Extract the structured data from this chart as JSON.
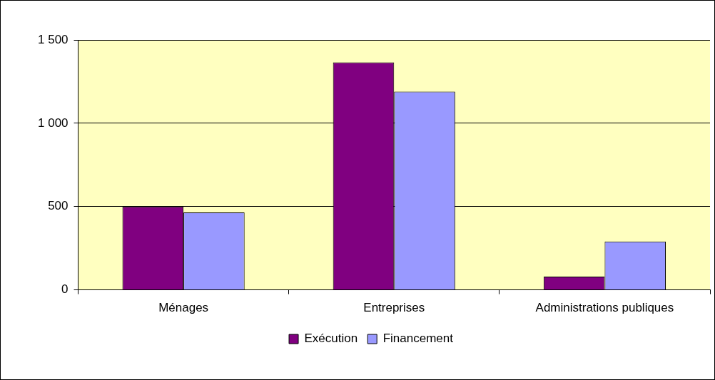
{
  "chart_data": {
    "type": "bar",
    "categories": [
      "Ménages",
      "Entreprises",
      "Administrations publiques"
    ],
    "series": [
      {
        "name": "Exécution",
        "color": "#800080",
        "values": [
          500,
          1365,
          80
        ]
      },
      {
        "name": "Financement",
        "color": "#9999ff",
        "values": [
          465,
          1190,
          290
        ]
      }
    ],
    "ylim": [
      0,
      1500
    ],
    "yticks": [
      0,
      500,
      {
        "value": 1000,
        "label": "1 000"
      },
      {
        "value": 1500,
        "label": "1 500"
      }
    ],
    "grid": "y",
    "legend": "bottom"
  }
}
